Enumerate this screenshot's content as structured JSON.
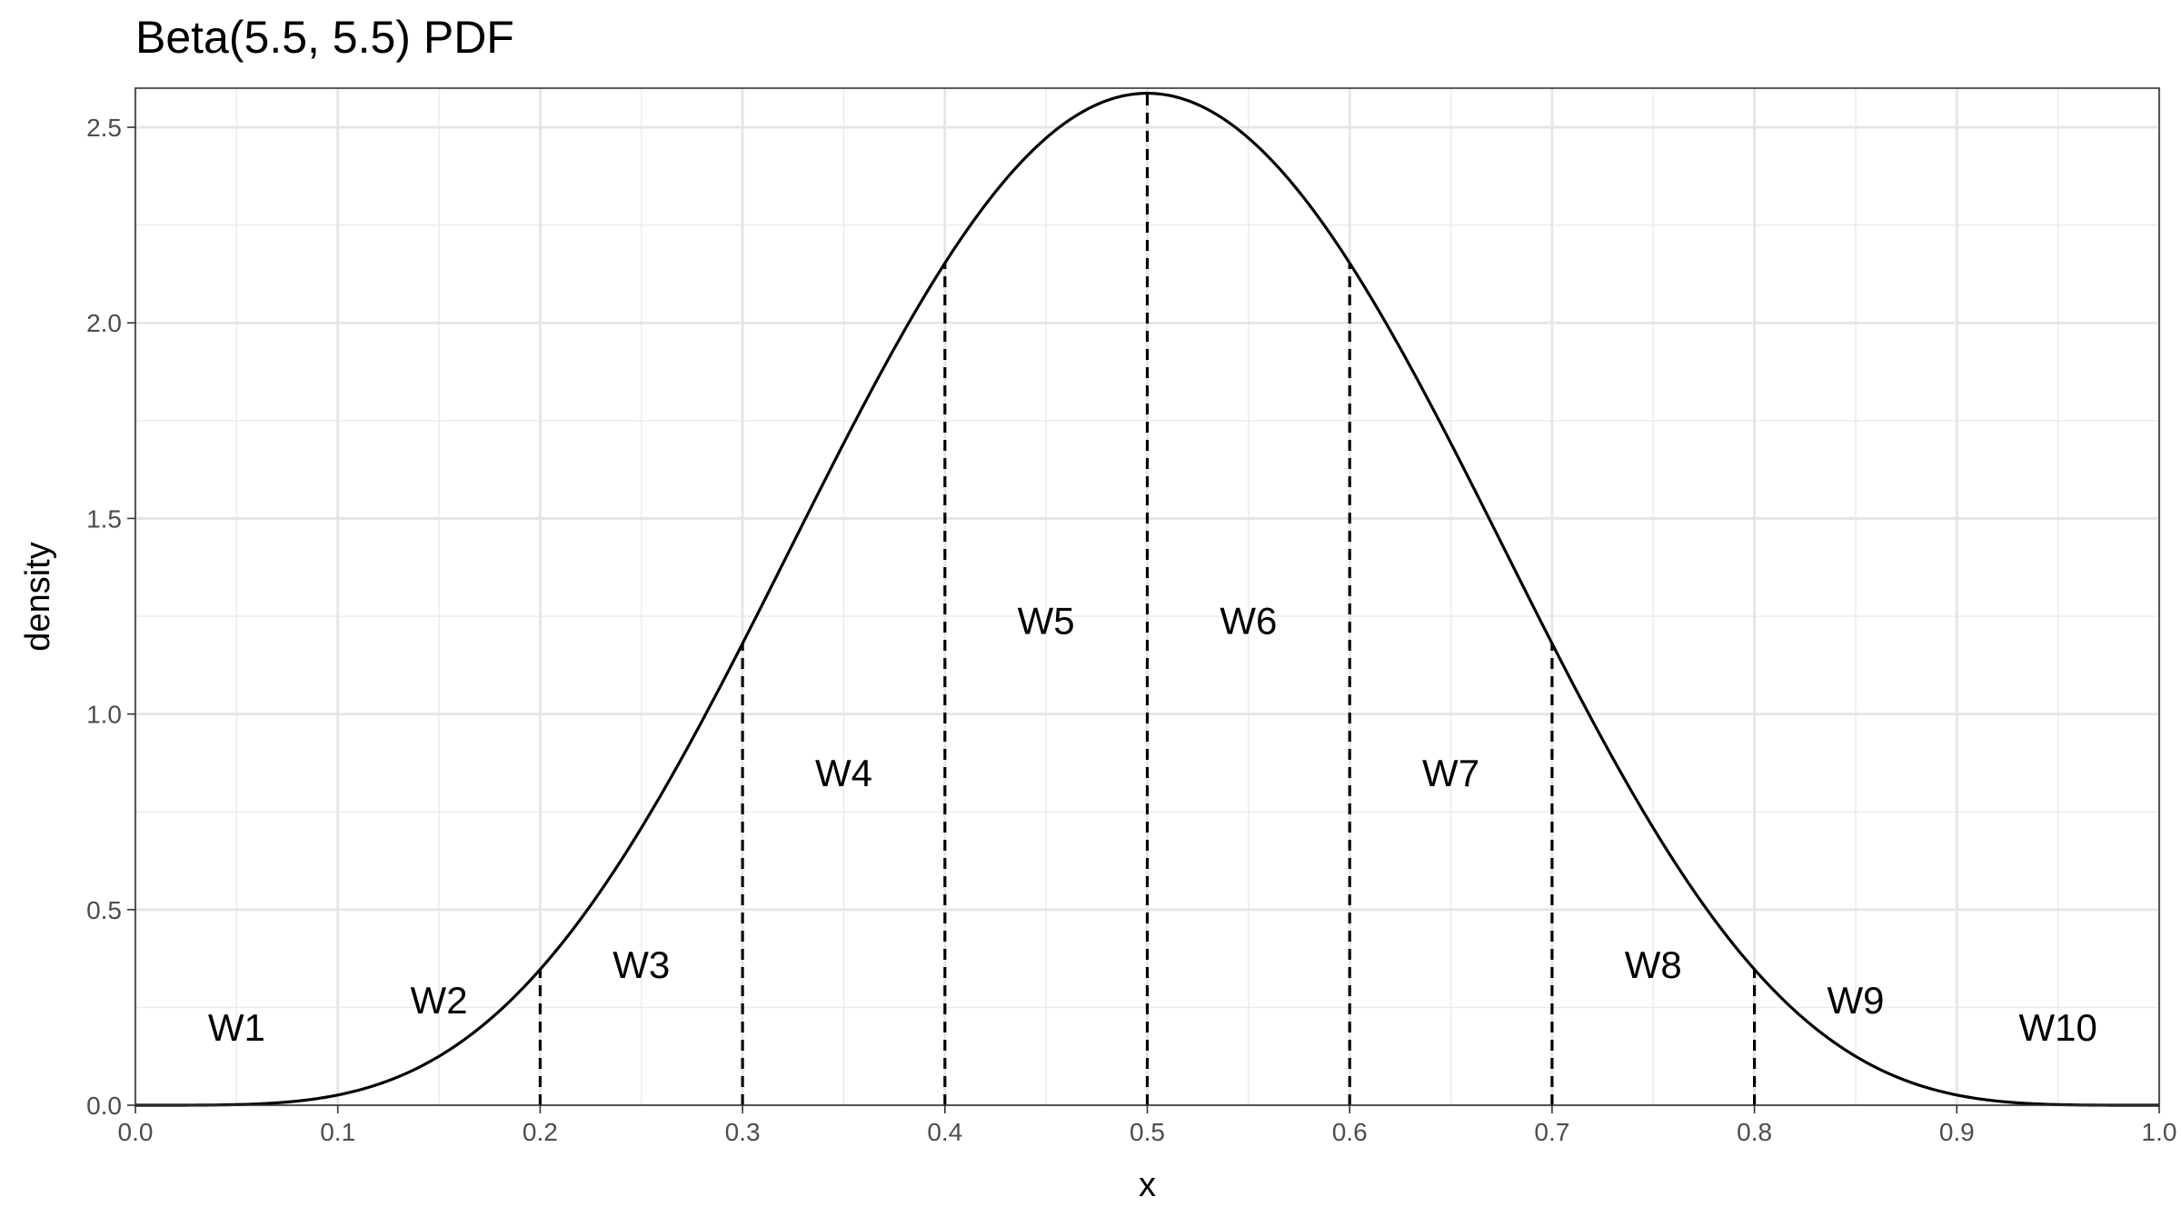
{
  "chart_data": {
    "type": "line",
    "title": "Beta(5.5, 5.5) PDF",
    "xlabel": "x",
    "ylabel": "density",
    "distribution": {
      "family": "beta",
      "alpha": 5.5,
      "beta": 5.5
    },
    "xlim": [
      0,
      1
    ],
    "ylim": [
      0,
      2.6
    ],
    "x_ticks": [
      "0.0",
      "0.1",
      "0.2",
      "0.3",
      "0.4",
      "0.5",
      "0.6",
      "0.7",
      "0.8",
      "0.9",
      "1.0"
    ],
    "y_ticks": [
      "0.0",
      "0.5",
      "1.0",
      "1.5",
      "2.0",
      "2.5"
    ],
    "grid": true,
    "boundaries": [
      0.2,
      0.3,
      0.4,
      0.5,
      0.6,
      0.7,
      0.8
    ],
    "windows": [
      {
        "label": "W1",
        "x": 0.05,
        "y": 0.2
      },
      {
        "label": "W2",
        "x": 0.15,
        "y": 0.27
      },
      {
        "label": "W3",
        "x": 0.25,
        "y": 0.36
      },
      {
        "label": "W4",
        "x": 0.35,
        "y": 0.85
      },
      {
        "label": "W5",
        "x": 0.45,
        "y": 1.24
      },
      {
        "label": "W6",
        "x": 0.55,
        "y": 1.24
      },
      {
        "label": "W7",
        "x": 0.65,
        "y": 0.85
      },
      {
        "label": "W8",
        "x": 0.75,
        "y": 0.36
      },
      {
        "label": "W9",
        "x": 0.85,
        "y": 0.27
      },
      {
        "label": "W10",
        "x": 0.95,
        "y": 0.2
      }
    ]
  }
}
